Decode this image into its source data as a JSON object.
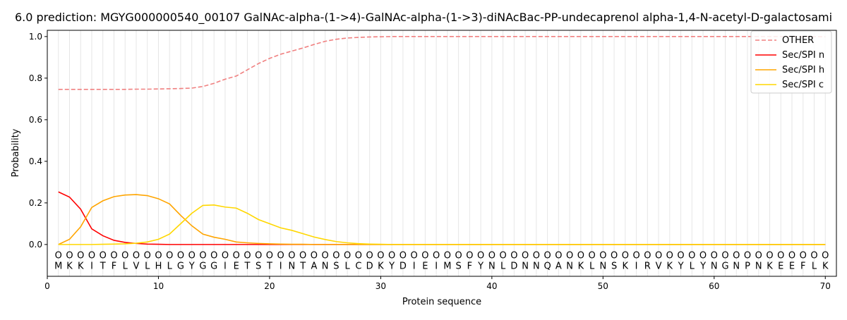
{
  "chart_data": {
    "type": "line",
    "title": "6.0 prediction: MGYG000000540_00107 GalNAc-alpha-(1->4)-GalNAc-alpha-(1->3)-diNAcBac-PP-undecaprenol alpha-1,4-N-acetyl-D-galactosami",
    "xlabel": "Protein sequence",
    "ylabel": "Probability",
    "xlim": [
      0,
      71
    ],
    "ylim": [
      -0.153,
      1.03
    ],
    "xticks": [
      0,
      10,
      20,
      30,
      40,
      50,
      60,
      70
    ],
    "yticks": [
      0.0,
      0.2,
      0.4,
      0.6,
      0.8,
      1.0
    ],
    "ytick_labels": [
      "0.0",
      "0.2",
      "0.4",
      "0.6",
      "0.8",
      "1.0"
    ],
    "legend_position": "top-right",
    "sequence": [
      "M",
      "K",
      "K",
      "I",
      "T",
      "F",
      "L",
      "V",
      "L",
      "H",
      "L",
      "G",
      "Y",
      "G",
      "G",
      "I",
      "E",
      "T",
      "S",
      "T",
      "I",
      "N",
      "T",
      "A",
      "N",
      "S",
      "L",
      "C",
      "D",
      "K",
      "Y",
      "D",
      "I",
      "E",
      "I",
      "M",
      "S",
      "F",
      "Y",
      "N",
      "L",
      "D",
      "N",
      "N",
      "Q",
      "A",
      "N",
      "K",
      "L",
      "N",
      "S",
      "K",
      "I",
      "R",
      "V",
      "K",
      "Y",
      "L",
      "Y",
      "N",
      "G",
      "N",
      "P",
      "N",
      "K",
      "E",
      "E",
      "F",
      "L",
      "K"
    ],
    "region_marker": "O",
    "series": [
      {
        "name": "OTHER",
        "color": "#f08080",
        "dashed": true,
        "values": [
          0.746,
          0.746,
          0.746,
          0.746,
          0.746,
          0.746,
          0.746,
          0.747,
          0.747,
          0.748,
          0.749,
          0.75,
          0.752,
          0.76,
          0.775,
          0.795,
          0.81,
          0.84,
          0.87,
          0.895,
          0.915,
          0.93,
          0.945,
          0.962,
          0.977,
          0.987,
          0.993,
          0.996,
          0.998,
          0.999,
          1,
          1,
          1,
          1,
          1,
          1,
          1,
          1,
          1,
          1,
          1,
          1,
          1,
          1,
          1,
          1,
          1,
          1,
          1,
          1,
          1,
          1,
          1,
          1,
          1,
          1,
          1,
          1,
          1,
          1,
          1,
          1,
          1,
          1,
          1,
          1,
          1,
          1,
          1,
          0.999
        ]
      },
      {
        "name": "Sec/SPI n",
        "color": "#ff0000",
        "dashed": false,
        "values": [
          0.253,
          0.228,
          0.17,
          0.075,
          0.042,
          0.02,
          0.01,
          0.005,
          0.002,
          0.001,
          0,
          0,
          0,
          0,
          0,
          0,
          0,
          0,
          0,
          0,
          0,
          0,
          0,
          0,
          0,
          0,
          0,
          0,
          0,
          0,
          0,
          0,
          0,
          0,
          0,
          0,
          0,
          0,
          0,
          0,
          0,
          0,
          0,
          0,
          0,
          0,
          0,
          0,
          0,
          0,
          0,
          0,
          0,
          0,
          0,
          0,
          0,
          0,
          0,
          0,
          0,
          0,
          0,
          0,
          0,
          0,
          0,
          0,
          0,
          0
        ]
      },
      {
        "name": "Sec/SPI h",
        "color": "#ffa500",
        "dashed": false,
        "values": [
          0,
          0.025,
          0.085,
          0.178,
          0.21,
          0.23,
          0.238,
          0.24,
          0.235,
          0.22,
          0.195,
          0.14,
          0.09,
          0.05,
          0.035,
          0.025,
          0.012,
          0.008,
          0.005,
          0.003,
          0.002,
          0.001,
          0.001,
          0,
          0,
          0,
          0,
          0,
          0,
          0,
          0,
          0,
          0,
          0,
          0,
          0,
          0,
          0,
          0,
          0,
          0,
          0,
          0,
          0,
          0,
          0,
          0,
          0,
          0,
          0,
          0,
          0,
          0,
          0,
          0,
          0,
          0,
          0,
          0,
          0,
          0,
          0,
          0,
          0,
          0,
          0,
          0,
          0,
          0,
          0
        ]
      },
      {
        "name": "Sec/SPI c",
        "color": "#ffd700",
        "dashed": false,
        "values": [
          0,
          0,
          0,
          0,
          0.001,
          0.002,
          0.003,
          0.006,
          0.012,
          0.025,
          0.05,
          0.1,
          0.15,
          0.188,
          0.19,
          0.18,
          0.175,
          0.15,
          0.12,
          0.1,
          0.08,
          0.068,
          0.052,
          0.036,
          0.024,
          0.014,
          0.008,
          0.004,
          0.002,
          0.001,
          0,
          0,
          0,
          0,
          0,
          0,
          0,
          0,
          0,
          0,
          0,
          0,
          0,
          0,
          0,
          0,
          0,
          0,
          0,
          0,
          0,
          0,
          0,
          0,
          0,
          0,
          0,
          0,
          0,
          0,
          0,
          0,
          0,
          0,
          0,
          0,
          0,
          0,
          0,
          0
        ]
      }
    ]
  }
}
